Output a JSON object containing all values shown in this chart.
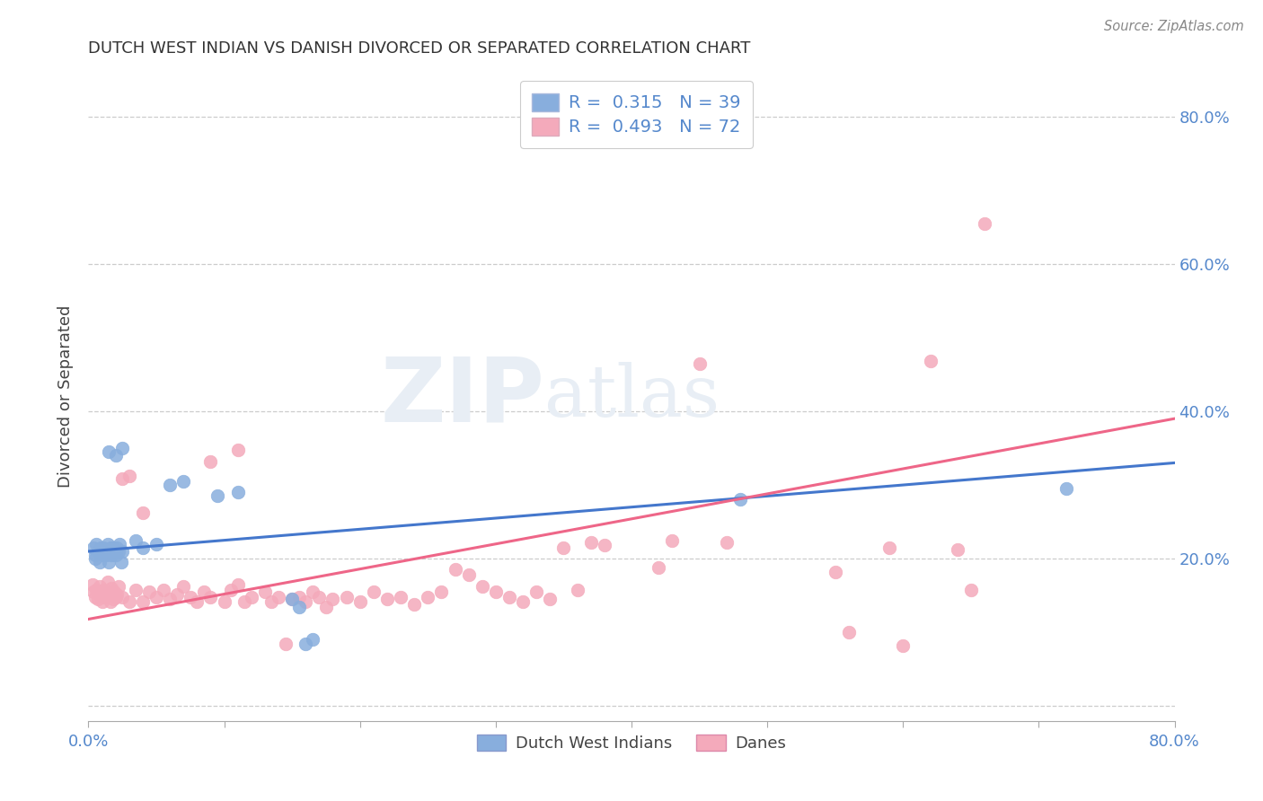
{
  "title": "DUTCH WEST INDIAN VS DANISH DIVORCED OR SEPARATED CORRELATION CHART",
  "source": "Source: ZipAtlas.com",
  "ylabel": "Divorced or Separated",
  "ytick_values": [
    0.0,
    0.2,
    0.4,
    0.6,
    0.8
  ],
  "ytick_labels": [
    "",
    "20.0%",
    "40.0%",
    "60.0%",
    "80.0%"
  ],
  "xlim": [
    0.0,
    0.8
  ],
  "ylim": [
    -0.02,
    0.86
  ],
  "color_blue": "#88AEDD",
  "color_pink": "#F4AABB",
  "trendline_blue": [
    [
      0.0,
      0.21
    ],
    [
      0.8,
      0.33
    ]
  ],
  "trendline_pink": [
    [
      0.0,
      0.118
    ],
    [
      0.8,
      0.39
    ]
  ],
  "watermark_zip": "ZIP",
  "watermark_atlas": "atlas",
  "dutch_west_indian_points": [
    [
      0.004,
      0.215
    ],
    [
      0.005,
      0.205
    ],
    [
      0.006,
      0.22
    ],
    [
      0.007,
      0.21
    ],
    [
      0.008,
      0.195
    ],
    [
      0.009,
      0.215
    ],
    [
      0.01,
      0.205
    ],
    [
      0.011,
      0.215
    ],
    [
      0.012,
      0.21
    ],
    [
      0.013,
      0.205
    ],
    [
      0.014,
      0.22
    ],
    [
      0.015,
      0.195
    ],
    [
      0.016,
      0.215
    ],
    [
      0.017,
      0.205
    ],
    [
      0.018,
      0.215
    ],
    [
      0.019,
      0.21
    ],
    [
      0.02,
      0.205
    ],
    [
      0.021,
      0.215
    ],
    [
      0.022,
      0.21
    ],
    [
      0.023,
      0.22
    ],
    [
      0.024,
      0.195
    ],
    [
      0.025,
      0.21
    ],
    [
      0.015,
      0.345
    ],
    [
      0.02,
      0.34
    ],
    [
      0.025,
      0.35
    ],
    [
      0.06,
      0.3
    ],
    [
      0.07,
      0.305
    ],
    [
      0.095,
      0.285
    ],
    [
      0.11,
      0.29
    ],
    [
      0.16,
      0.085
    ],
    [
      0.165,
      0.09
    ],
    [
      0.48,
      0.28
    ],
    [
      0.72,
      0.295
    ],
    [
      0.15,
      0.145
    ],
    [
      0.155,
      0.135
    ],
    [
      0.035,
      0.225
    ],
    [
      0.04,
      0.215
    ],
    [
      0.05,
      0.22
    ],
    [
      0.005,
      0.2
    ]
  ],
  "danish_points": [
    [
      0.003,
      0.165
    ],
    [
      0.004,
      0.155
    ],
    [
      0.005,
      0.148
    ],
    [
      0.006,
      0.158
    ],
    [
      0.007,
      0.145
    ],
    [
      0.008,
      0.162
    ],
    [
      0.009,
      0.15
    ],
    [
      0.01,
      0.142
    ],
    [
      0.011,
      0.158
    ],
    [
      0.012,
      0.148
    ],
    [
      0.013,
      0.155
    ],
    [
      0.014,
      0.168
    ],
    [
      0.015,
      0.152
    ],
    [
      0.016,
      0.142
    ],
    [
      0.017,
      0.16
    ],
    [
      0.018,
      0.145
    ],
    [
      0.019,
      0.155
    ],
    [
      0.02,
      0.148
    ],
    [
      0.021,
      0.152
    ],
    [
      0.022,
      0.162
    ],
    [
      0.025,
      0.148
    ],
    [
      0.03,
      0.142
    ],
    [
      0.035,
      0.158
    ],
    [
      0.04,
      0.142
    ],
    [
      0.045,
      0.155
    ],
    [
      0.05,
      0.148
    ],
    [
      0.055,
      0.158
    ],
    [
      0.06,
      0.145
    ],
    [
      0.065,
      0.152
    ],
    [
      0.07,
      0.162
    ],
    [
      0.075,
      0.148
    ],
    [
      0.08,
      0.142
    ],
    [
      0.085,
      0.155
    ],
    [
      0.09,
      0.148
    ],
    [
      0.1,
      0.142
    ],
    [
      0.105,
      0.158
    ],
    [
      0.11,
      0.165
    ],
    [
      0.115,
      0.142
    ],
    [
      0.12,
      0.148
    ],
    [
      0.13,
      0.155
    ],
    [
      0.135,
      0.142
    ],
    [
      0.14,
      0.148
    ],
    [
      0.145,
      0.085
    ],
    [
      0.15,
      0.145
    ],
    [
      0.155,
      0.148
    ],
    [
      0.16,
      0.142
    ],
    [
      0.165,
      0.155
    ],
    [
      0.17,
      0.148
    ],
    [
      0.175,
      0.135
    ],
    [
      0.18,
      0.145
    ],
    [
      0.19,
      0.148
    ],
    [
      0.2,
      0.142
    ],
    [
      0.21,
      0.155
    ],
    [
      0.22,
      0.145
    ],
    [
      0.23,
      0.148
    ],
    [
      0.24,
      0.138
    ],
    [
      0.25,
      0.148
    ],
    [
      0.26,
      0.155
    ],
    [
      0.27,
      0.185
    ],
    [
      0.28,
      0.178
    ],
    [
      0.29,
      0.162
    ],
    [
      0.3,
      0.155
    ],
    [
      0.31,
      0.148
    ],
    [
      0.32,
      0.142
    ],
    [
      0.33,
      0.155
    ],
    [
      0.34,
      0.145
    ],
    [
      0.35,
      0.215
    ],
    [
      0.36,
      0.158
    ],
    [
      0.37,
      0.222
    ],
    [
      0.38,
      0.218
    ],
    [
      0.42,
      0.188
    ],
    [
      0.43,
      0.225
    ],
    [
      0.45,
      0.465
    ],
    [
      0.47,
      0.222
    ],
    [
      0.55,
      0.182
    ],
    [
      0.56,
      0.1
    ],
    [
      0.59,
      0.215
    ],
    [
      0.6,
      0.082
    ],
    [
      0.62,
      0.468
    ],
    [
      0.64,
      0.212
    ],
    [
      0.65,
      0.158
    ],
    [
      0.66,
      0.655
    ],
    [
      0.025,
      0.308
    ],
    [
      0.03,
      0.312
    ],
    [
      0.04,
      0.262
    ],
    [
      0.09,
      0.332
    ],
    [
      0.11,
      0.348
    ]
  ]
}
